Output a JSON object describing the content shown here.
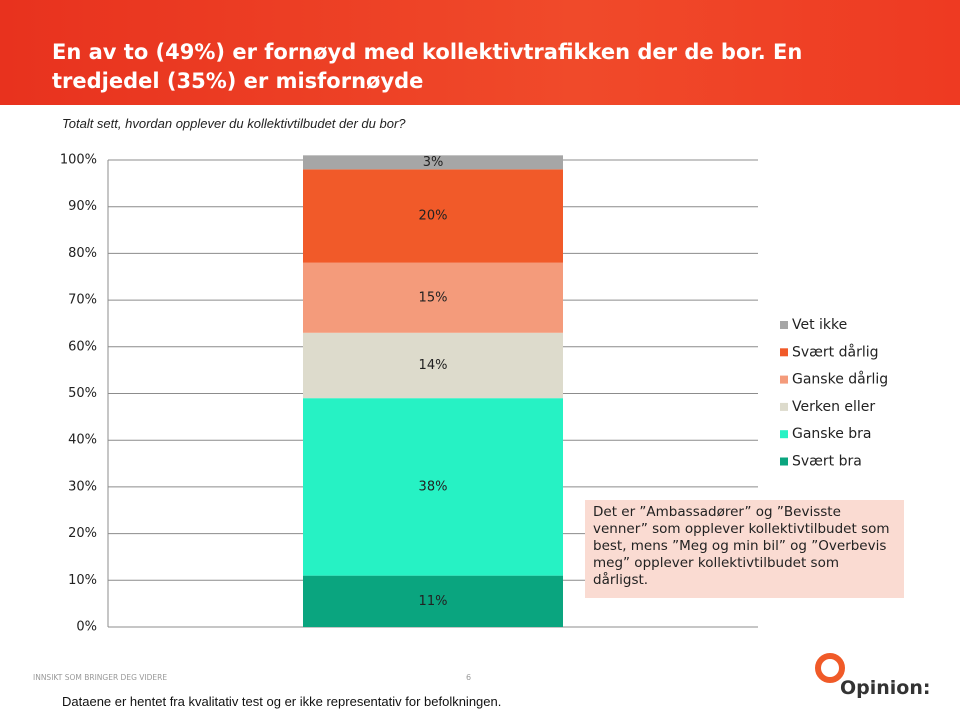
{
  "header": {
    "title": "En av to (49%) er fornøyd med kollektivtrafikken der de bor. En tredjedel (35%) er misfornøyde"
  },
  "chart_data": {
    "type": "stacked_bar",
    "subtitle": "Totalt sett, hvordan opplever du kollektivtilbudet der du bor?",
    "categories": [
      null
    ],
    "series": [
      {
        "name": "Svært bra",
        "color": "#0aa57f",
        "values": [
          11
        ],
        "value_labels": [
          "11%"
        ]
      },
      {
        "name": "Ganske bra",
        "color": "#26f2c4",
        "values": [
          38
        ],
        "value_labels": [
          "38%"
        ]
      },
      {
        "name": "Verken eller",
        "color": "#dddbcc",
        "values": [
          14
        ],
        "value_labels": [
          "14%"
        ]
      },
      {
        "name": "Ganske dårlig",
        "color": "#f49b7b",
        "values": [
          15
        ],
        "value_labels": [
          "15%"
        ]
      },
      {
        "name": "Svært dårlig",
        "color": "#f15a29",
        "values": [
          20
        ],
        "value_labels": [
          "20%"
        ]
      },
      {
        "name": "Vet ikke",
        "color": "#a6a6a6",
        "values": [
          3
        ],
        "value_labels": [
          "3%"
        ]
      }
    ],
    "ylim": [
      0,
      100
    ],
    "yticks": [
      {
        "value": 0,
        "label": "0%"
      },
      {
        "value": 10,
        "label": "10%"
      },
      {
        "value": 20,
        "label": "20%"
      },
      {
        "value": 30,
        "label": "30%"
      },
      {
        "value": 40,
        "label": "40%"
      },
      {
        "value": 50,
        "label": "50%"
      },
      {
        "value": 60,
        "label": "60%"
      },
      {
        "value": 70,
        "label": "70%"
      },
      {
        "value": 80,
        "label": "80%"
      },
      {
        "value": 90,
        "label": "90%"
      },
      {
        "value": 100,
        "label": "100%"
      }
    ],
    "grid": true,
    "legend": "right",
    "annotation": "Det er ”Ambassadører” og ”Bevisste venner” som opplever kollektivtilbudet som best, mens ”Meg og min bil” og ”Overbevis meg” opplever kollektivtilbudet som dårligst."
  },
  "footer": {
    "tagline": "INNSIKT SOM BRINGER DEG VIDERE",
    "page": "6",
    "note": "Dataene er hentet fra kvalitativ test og er ikke representativ for befolkningen.",
    "logo": "Opinion:"
  }
}
